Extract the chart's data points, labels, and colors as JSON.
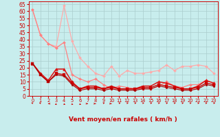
{
  "xlabel": "Vent moyen/en rafales ( km/h )",
  "xlabel_color": "#cc0000",
  "background_color": "#c8eded",
  "grid_color": "#aacccc",
  "x_values": [
    0,
    1,
    2,
    3,
    4,
    5,
    6,
    7,
    8,
    9,
    10,
    11,
    12,
    13,
    14,
    15,
    16,
    17,
    18,
    19,
    20,
    21,
    22,
    23
  ],
  "lines": [
    {
      "y": [
        61,
        43,
        37,
        35,
        64,
        39,
        27,
        21,
        16,
        14,
        21,
        14,
        18,
        16,
        16,
        17,
        18,
        22,
        18,
        21,
        21,
        22,
        21,
        16
      ],
      "color": "#ffaaaa",
      "marker": "D",
      "markersize": 2.0,
      "linewidth": 0.9
    },
    {
      "y": [
        61,
        43,
        37,
        34,
        38,
        15,
        12,
        10,
        12,
        8,
        5,
        7,
        6,
        5,
        5,
        5,
        7,
        10,
        7,
        6,
        8,
        8,
        11,
        9
      ],
      "color": "#ff8080",
      "marker": "D",
      "markersize": 2.0,
      "linewidth": 0.9
    },
    {
      "y": [
        23,
        16,
        11,
        19,
        19,
        10,
        5,
        7,
        7,
        5,
        7,
        5,
        5,
        5,
        7,
        7,
        10,
        9,
        7,
        5,
        5,
        7,
        11,
        9
      ],
      "color": "#dd1111",
      "marker": "^",
      "markersize": 2.8,
      "linewidth": 1.1
    },
    {
      "y": [
        23,
        15,
        10,
        16,
        15,
        9,
        5,
        6,
        6,
        5,
        6,
        5,
        5,
        5,
        6,
        6,
        8,
        7,
        6,
        5,
        5,
        6,
        9,
        8
      ],
      "color": "#cc0000",
      "marker": "s",
      "markersize": 2.2,
      "linewidth": 1.0
    },
    {
      "y": [
        23,
        15,
        10,
        15,
        14,
        8,
        4,
        5,
        5,
        4,
        5,
        4,
        4,
        4,
        5,
        5,
        7,
        6,
        5,
        4,
        4,
        5,
        8,
        7
      ],
      "color": "#aa0000",
      "marker": "o",
      "markersize": 1.8,
      "linewidth": 0.8
    }
  ],
  "ylim": [
    0,
    67
  ],
  "xlim": [
    -0.5,
    23.5
  ],
  "yticks": [
    0,
    5,
    10,
    15,
    20,
    25,
    30,
    35,
    40,
    45,
    50,
    55,
    60,
    65
  ],
  "xticks": [
    0,
    1,
    2,
    3,
    4,
    5,
    6,
    7,
    8,
    9,
    10,
    11,
    12,
    13,
    14,
    15,
    16,
    17,
    18,
    19,
    20,
    21,
    22,
    23
  ],
  "tick_color": "#cc0000",
  "ytick_fontsize": 5.5,
  "xtick_fontsize": 4.8,
  "xlabel_fontsize": 6.5,
  "arrow_angles": [
    225,
    225,
    270,
    315,
    45,
    45,
    45,
    90,
    90,
    135,
    90,
    135,
    135,
    135,
    135,
    135,
    135,
    135,
    135,
    135,
    135,
    135,
    135,
    135
  ]
}
